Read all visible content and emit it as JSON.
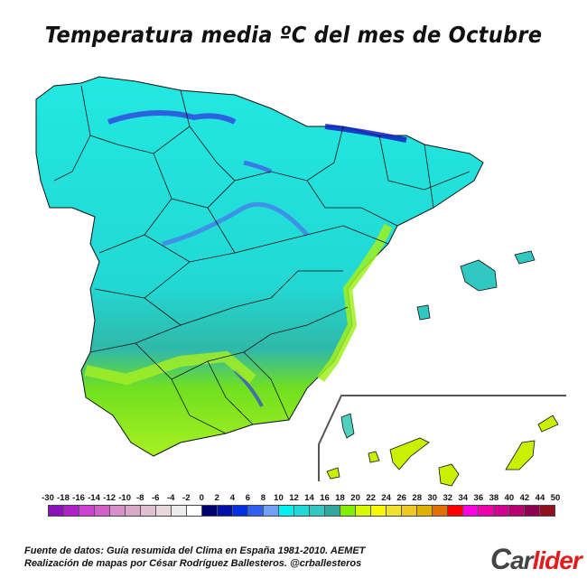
{
  "title": "Temperatura media ºC del mes de Octubre",
  "map": {
    "region": "Spain (Iberian Peninsula, Balearic Islands, Canary Islands inset)",
    "variable": "Mean temperature",
    "unit": "ºC",
    "month": "Octubre",
    "colors": {
      "ocean": "#ffffff",
      "mountains_cold": "#1020c8",
      "interior_plateau": "#20e8e0",
      "southern_plateau": "#30c0b0",
      "coast_warm": "#a0f020",
      "south_hot": "#c8f000",
      "border": "#111111"
    }
  },
  "legend": {
    "ticks": [
      "-30",
      "-18",
      "-16",
      "-14",
      "-12",
      "-10",
      "-8",
      "-6",
      "-4",
      "-2",
      "0",
      "2",
      "4",
      "6",
      "8",
      "10",
      "12",
      "14",
      "16",
      "18",
      "20",
      "22",
      "24",
      "26",
      "28",
      "30",
      "32",
      "34",
      "36",
      "38",
      "40",
      "42",
      "44",
      "50"
    ],
    "colors": [
      "#8a10b8",
      "#b020c8",
      "#d040d0",
      "#d060c8",
      "#d890c8",
      "#d8a8c8",
      "#e0c0d0",
      "#e8d8dc",
      "#ececec",
      "#ffffff",
      "#000070",
      "#0010a8",
      "#0030e0",
      "#3060f0",
      "#70a0f8",
      "#00f0f0",
      "#20d8d8",
      "#30c8c0",
      "#30a8a0",
      "#80f000",
      "#d8f800",
      "#f8f800",
      "#f0e030",
      "#f0c820",
      "#e0b000",
      "#e07000",
      "#ff0000",
      "#ff00e0",
      "#f000a8",
      "#d00090",
      "#b80070",
      "#900050",
      "#901020"
    ]
  },
  "credits": {
    "line1": "Fuente de datos: Guía resumida del Clima en España 1981-2010. AEMET",
    "line2": "Realización de mapas por César Rodríguez Ballesteros. @crballesteros"
  },
  "logo": {
    "part1": "C",
    "part2": "ar",
    "part3": "lider"
  }
}
